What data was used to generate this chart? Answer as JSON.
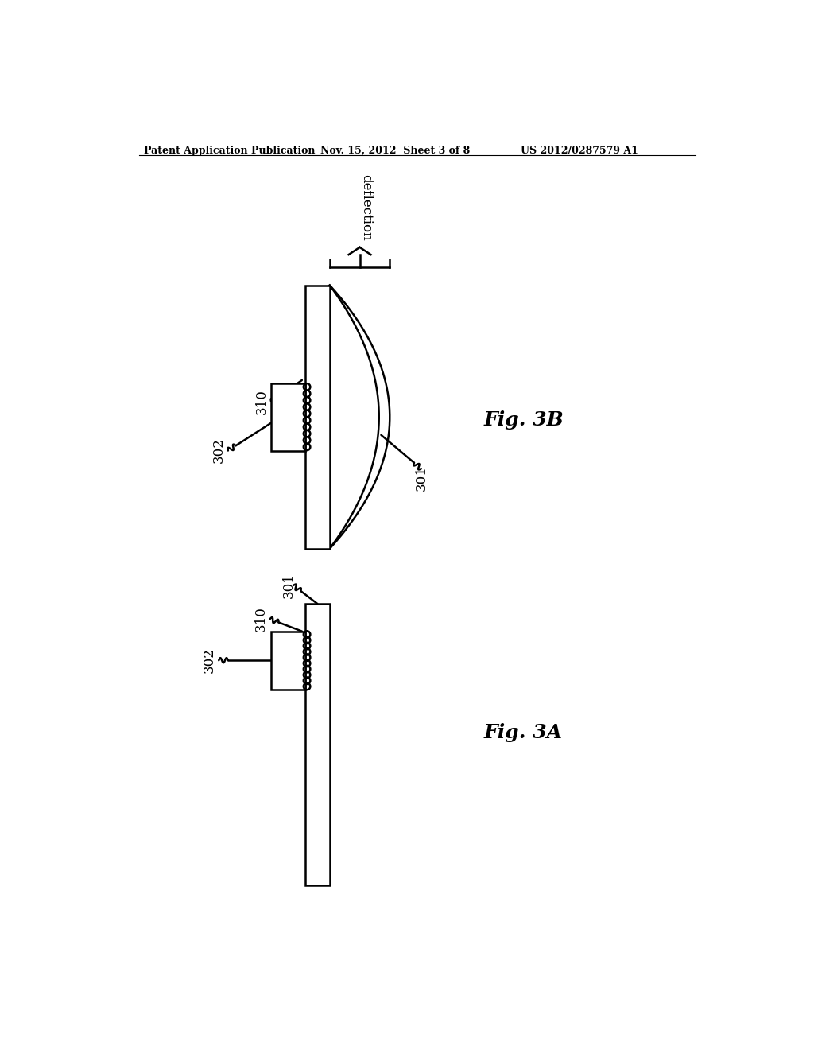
{
  "background_color": "#ffffff",
  "header_left": "Patent Application Publication",
  "header_center": "Nov. 15, 2012  Sheet 3 of 8",
  "header_right": "US 2012/0287579 A1",
  "fig3b_label": "Fig. 3B",
  "fig3a_label": "Fig. 3A",
  "label_310": "310",
  "label_302": "302",
  "label_301": "301",
  "label_deflection": "deflection",
  "line_color": "#000000",
  "lw": 1.8
}
